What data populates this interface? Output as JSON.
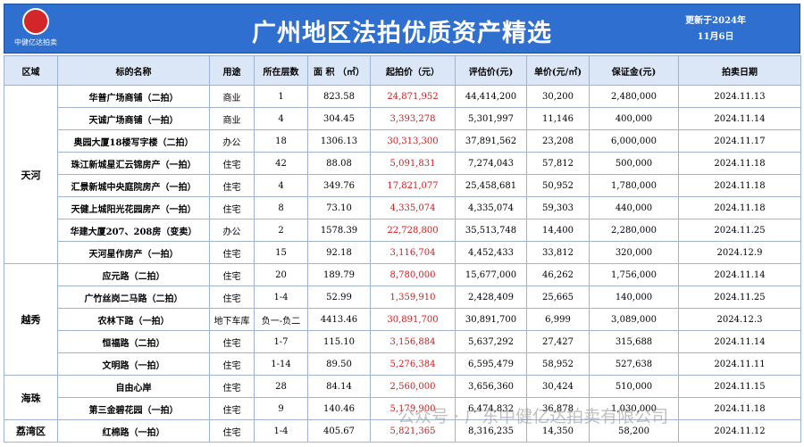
{
  "header": {
    "logo_text": "中健亿达拍卖",
    "title": "广州地区法拍优质资产精选",
    "update_line1": "更新于2024年",
    "update_line2": "11月6日"
  },
  "table": {
    "columns": [
      "区域",
      "标的名称",
      "用途",
      "所在层数",
      "面 积 （㎡）",
      "起拍价（元）",
      "评估价(元)",
      "单价(元/㎡)",
      "保证金(元)",
      "拍卖日期"
    ],
    "groups": [
      {
        "region": "天河",
        "rows": [
          [
            "华普广场商铺（二拍）",
            "商业",
            "1",
            "823.58",
            "24,871,952",
            "44,414,200",
            "30,200",
            "2,480,000",
            "2024.11.13"
          ],
          [
            "天诚广场商铺（一拍）",
            "商业",
            "4",
            "304.45",
            "3,393,278",
            "5,301,997",
            "11,146",
            "400,000",
            "2024.11.14"
          ],
          [
            "奥园大厦18楼写字楼（二拍）",
            "办公",
            "18",
            "1306.13",
            "30,313,300",
            "37,891,562",
            "23,208",
            "6,000,000",
            "2024.11.17"
          ],
          [
            "珠江新城星汇云锦房产（一拍）",
            "住宅",
            "42",
            "88.08",
            "5,091,831",
            "7,274,043",
            "57,812",
            "500,000",
            "2024.11.18"
          ],
          [
            "汇景新城中央庭院房产（一拍）",
            "住宅",
            "4",
            "349.76",
            "17,821,077",
            "25,458,681",
            "50,952",
            "1,780,000",
            "2024.11.18"
          ],
          [
            "天健上城阳光花园房产（一拍）",
            "住宅",
            "8",
            "73.10",
            "4,335,074",
            "4,335,074",
            "59,303",
            "440,000",
            "2024.11.18"
          ],
          [
            "华建大厦207、208房（变卖）",
            "办公",
            "2",
            "1578.39",
            "22,728,800",
            "35,513,748",
            "14,400",
            "2,280,000",
            "2024.11.25"
          ],
          [
            "天河星作房产（一拍）",
            "住宅",
            "15",
            "92.18",
            "3,116,704",
            "4,452,433",
            "33,812",
            "320,000",
            "2024.12.9"
          ]
        ]
      },
      {
        "region": "越秀",
        "rows": [
          [
            "应元路（二拍）",
            "住宅",
            "20",
            "189.79",
            "8,780,000",
            "15,677,000",
            "46,262",
            "1,756,000",
            "2024.11.14"
          ],
          [
            "广竹丝岗二马路（二拍）",
            "住宅",
            "1-4",
            "52.99",
            "1,359,910",
            "2,428,409",
            "25,665",
            "140,000",
            "2024.11.25"
          ],
          [
            "农林下路（一拍）",
            "地下车库",
            "负一-负二",
            "4413.46",
            "30,891,700",
            "30,891,700",
            "6,999",
            "3,089,000",
            "2024.12.3"
          ],
          [
            "恒福路（二拍）",
            "住宅",
            "1-7",
            "115.10",
            "3,156,884",
            "5,637,292",
            "27,427",
            "315,688",
            "2024.11.14"
          ],
          [
            "文明路（一拍）",
            "住宅",
            "1-14",
            "89.50",
            "5,276,384",
            "6,595,479",
            "58,952",
            "527,638",
            "2024.11.11"
          ]
        ]
      },
      {
        "region": "海珠",
        "rows": [
          [
            "自由心岸",
            "住宅",
            "28",
            "84.14",
            "2,560,000",
            "3,656,360",
            "30,424",
            "510,000",
            "2024.11.15"
          ],
          [
            "第三金碧花园（一拍）",
            "住宅",
            "9",
            "140.46",
            "5,179,900",
            "6,474,832",
            "36,878",
            "1,030,000",
            "2024.11.18"
          ]
        ]
      },
      {
        "region": "荔湾区",
        "rows": [
          [
            "红棉路（一拍）",
            "住宅",
            "1-4",
            "405.67",
            "5,821,365",
            "8,316,235",
            "14,350",
            "58,200",
            "2024.11.12"
          ]
        ]
      }
    ]
  },
  "watermark": "公众号 · 广东中健亿达拍卖有限公司"
}
